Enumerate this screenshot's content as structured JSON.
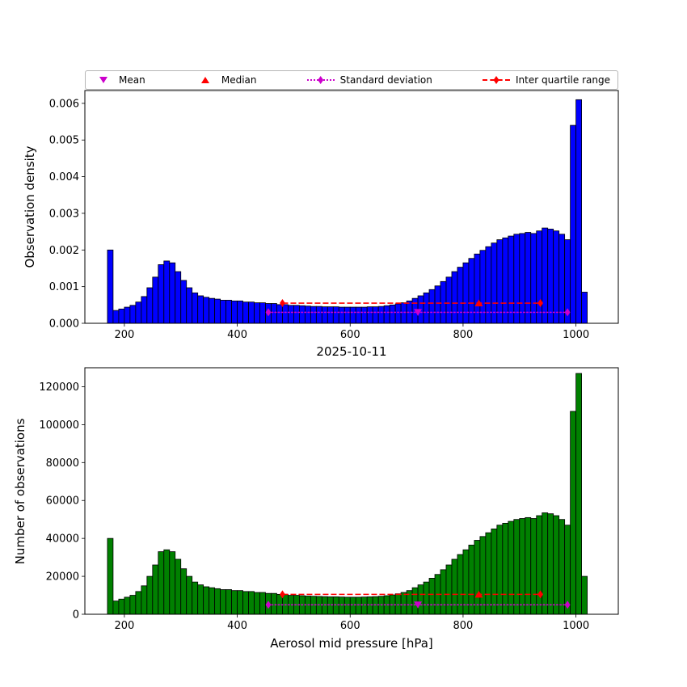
{
  "colors": {
    "magenta": "#cc00cc",
    "red": "#ff0000"
  },
  "legend": {
    "items": [
      {
        "label": "Mean",
        "marker": "triangle-down",
        "color": "#cc00cc",
        "linestyle": "none"
      },
      {
        "label": "Median",
        "marker": "triangle-up",
        "color": "#ff0000",
        "linestyle": "none"
      },
      {
        "label": "Standard deviation",
        "marker": "thin-diamond",
        "color": "#cc00cc",
        "linestyle": "dotted"
      },
      {
        "label": "Inter quartile range",
        "marker": "thin-diamond",
        "color": "#ff0000",
        "linestyle": "dashed"
      }
    ]
  },
  "chart_data": [
    {
      "type": "bar",
      "name": "observation-density-histogram",
      "title": "",
      "ylabel": "Observation density",
      "xlabel": "",
      "bar_color": "#0000ff",
      "edge_color": "#000000",
      "bin_start": 170,
      "bin_width": 10,
      "xlim": [
        130,
        1075
      ],
      "ylim": [
        0,
        0.00635
      ],
      "xtick_values": [
        200,
        400,
        600,
        800,
        1000
      ],
      "xtick_labels": [
        "200",
        "400",
        "600",
        "800",
        "1000"
      ],
      "ytick_values": [
        0,
        0.001,
        0.002,
        0.003,
        0.004,
        0.005,
        0.006
      ],
      "ytick_labels": [
        "0.000",
        "0.001",
        "0.002",
        "0.003",
        "0.004",
        "0.005",
        "0.006"
      ],
      "values": [
        0.002,
        0.00035,
        0.00039,
        0.00044,
        0.00049,
        0.00058,
        0.00073,
        0.00097,
        0.00126,
        0.0016,
        0.0017,
        0.00165,
        0.00141,
        0.00117,
        0.00097,
        0.00083,
        0.00075,
        0.00071,
        0.00068,
        0.00066,
        0.00063,
        0.00063,
        0.00061,
        0.00061,
        0.00058,
        0.00058,
        0.00056,
        0.00056,
        0.00054,
        0.00054,
        0.00051,
        0.00051,
        0.00049,
        0.00049,
        0.00048,
        0.00047,
        0.00046,
        0.00046,
        0.00045,
        0.00045,
        0.00045,
        0.00044,
        0.00044,
        0.00044,
        0.00044,
        0.00044,
        0.00045,
        0.00045,
        0.00046,
        0.00048,
        0.0005,
        0.00053,
        0.00056,
        0.00061,
        0.00068,
        0.00075,
        0.00083,
        0.00092,
        0.00102,
        0.00114,
        0.00126,
        0.00141,
        0.00153,
        0.00165,
        0.00177,
        0.00189,
        0.00199,
        0.00209,
        0.00219,
        0.00228,
        0.00233,
        0.00238,
        0.00243,
        0.00245,
        0.00248,
        0.00245,
        0.00252,
        0.0026,
        0.00257,
        0.00252,
        0.00243,
        0.00228,
        0.0054,
        0.0061,
        0.00085
      ],
      "stats": {
        "mean": 720,
        "median": 828,
        "q1": 480,
        "q3": 937,
        "std_low": 455,
        "std_high": 985,
        "std_line_y": 0.0003,
        "iqr_line_y": 0.00055
      }
    },
    {
      "type": "bar",
      "name": "observation-count-histogram",
      "title": "2025-10-11",
      "ylabel": "Number of observations",
      "xlabel": "Aerosol mid pressure [hPa]",
      "bar_color": "#008000",
      "edge_color": "#000000",
      "bin_start": 170,
      "bin_width": 10,
      "xlim": [
        130,
        1075
      ],
      "ylim": [
        0,
        130000
      ],
      "xtick_values": [
        200,
        400,
        600,
        800,
        1000
      ],
      "xtick_labels": [
        "200",
        "400",
        "600",
        "800",
        "1000"
      ],
      "ytick_values": [
        0,
        20000,
        40000,
        60000,
        80000,
        100000,
        120000
      ],
      "ytick_labels": [
        "0",
        "20000",
        "40000",
        "60000",
        "80000",
        "100000",
        "120000"
      ],
      "values": [
        40000,
        7000,
        8000,
        9000,
        10000,
        12000,
        15000,
        20000,
        26000,
        33000,
        34000,
        33000,
        29000,
        24000,
        20000,
        17000,
        15500,
        14500,
        14000,
        13500,
        13000,
        13000,
        12500,
        12500,
        12000,
        12000,
        11500,
        11500,
        11000,
        11000,
        10500,
        10500,
        10000,
        10000,
        9800,
        9600,
        9500,
        9400,
        9300,
        9200,
        9200,
        9100,
        9000,
        9000,
        9000,
        9100,
        9200,
        9300,
        9500,
        9800,
        10200,
        10800,
        11500,
        12500,
        14000,
        15500,
        17000,
        19000,
        21000,
        23500,
        26000,
        29000,
        31500,
        34000,
        36500,
        39000,
        41000,
        43000,
        45000,
        47000,
        48000,
        49000,
        50000,
        50500,
        51000,
        50500,
        52000,
        53500,
        53000,
        52000,
        50000,
        47000,
        107000,
        127000,
        20000
      ],
      "stats": {
        "mean": 720,
        "median": 828,
        "q1": 480,
        "q3": 937,
        "std_low": 455,
        "std_high": 985,
        "std_line_y": 5000,
        "iqr_line_y": 10500
      }
    }
  ]
}
